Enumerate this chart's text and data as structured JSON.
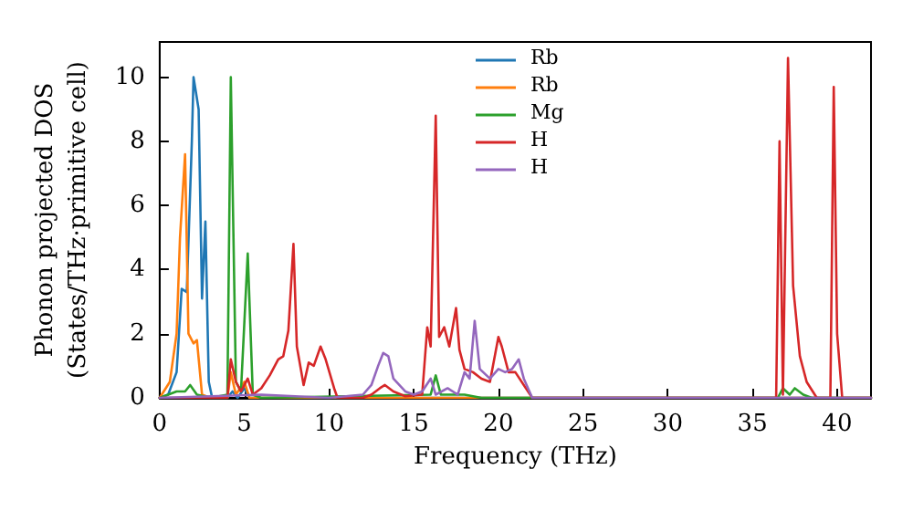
{
  "chart_data": {
    "type": "line",
    "xlabel": "Frequency (THz)",
    "ylabel": "Phonon projected DOS\n(States/THz·primitive cell)",
    "xlim": [
      0,
      42
    ],
    "ylim": [
      0,
      11.1
    ],
    "xticks": [
      0,
      5,
      10,
      15,
      20,
      25,
      30,
      35,
      40
    ],
    "yticks": [
      0,
      2,
      4,
      6,
      8,
      10
    ],
    "grid": false,
    "legend": "top",
    "marker": "none",
    "line_style": "solid",
    "series": [
      {
        "name": "Rb",
        "color": "#1f77b4",
        "x": [
          0,
          0.5,
          1.0,
          1.3,
          1.6,
          1.9,
          2.0,
          2.3,
          2.5,
          2.7,
          2.9,
          3.1,
          4.0,
          4.3,
          4.6,
          5.0,
          5.3,
          6,
          42
        ],
        "values": [
          0,
          0.1,
          0.8,
          3.4,
          3.3,
          8,
          10,
          9,
          3.1,
          5.5,
          0.5,
          0,
          0,
          0.2,
          0,
          0.3,
          0,
          0,
          0
        ]
      },
      {
        "name": "Rb",
        "color": "#ff7f0e",
        "x": [
          0,
          0.6,
          1.0,
          1.2,
          1.5,
          1.7,
          2.0,
          2.2,
          2.5,
          3.0,
          4.0,
          4.2,
          4.5,
          5.0,
          5.3,
          6,
          42
        ],
        "values": [
          0,
          0.5,
          2.0,
          5,
          7.6,
          2.0,
          1.7,
          1.8,
          0.1,
          0,
          0,
          0.8,
          0.1,
          0.5,
          0,
          0,
          0
        ]
      },
      {
        "name": "Mg",
        "color": "#2ca02c",
        "x": [
          0,
          1.0,
          1.5,
          1.8,
          2.2,
          3,
          4.0,
          4.2,
          4.5,
          4.8,
          5.2,
          5.5,
          6,
          16,
          16.3,
          16.6,
          17.5,
          18.0,
          19,
          36.5,
          36.8,
          37.2,
          37.5,
          38,
          38.5,
          42
        ],
        "values": [
          0,
          0.2,
          0.2,
          0.4,
          0.1,
          0,
          0.1,
          10,
          0.5,
          0.2,
          4.5,
          0.1,
          0,
          0.1,
          0.7,
          0.1,
          0.1,
          0.1,
          0,
          0,
          0.3,
          0.1,
          0.3,
          0.1,
          0,
          0
        ]
      },
      {
        "name": "H",
        "color": "#d62728",
        "x": [
          0,
          4.0,
          4.2,
          4.5,
          4.8,
          5.2,
          5.5,
          6.0,
          6.5,
          7.0,
          7.3,
          7.6,
          7.9,
          8.1,
          8.5,
          8.8,
          9.1,
          9.5,
          9.8,
          10.3,
          10.5,
          12,
          12.5,
          13,
          13.3,
          13.8,
          14.5,
          15.5,
          15.8,
          16.0,
          16.3,
          16.5,
          16.8,
          17.1,
          17.5,
          17.7,
          18,
          18.5,
          19,
          19.5,
          20,
          20.2,
          20.6,
          21,
          21.5,
          22,
          36.4,
          36.6,
          36.8,
          37.1,
          37.4,
          37.8,
          38.2,
          38.8,
          39.6,
          39.8,
          40.0,
          40.3,
          42
        ],
        "values": [
          0,
          0,
          1.2,
          0.5,
          0.2,
          0.6,
          0.1,
          0.3,
          0.7,
          1.2,
          1.3,
          2.1,
          4.8,
          1.6,
          0.4,
          1.1,
          1.0,
          1.6,
          1.2,
          0.3,
          0,
          0,
          0.1,
          0.3,
          0.4,
          0.2,
          0.05,
          0.1,
          2.2,
          1.6,
          8.8,
          1.9,
          2.2,
          1.6,
          2.8,
          1.5,
          0.9,
          0.8,
          0.6,
          0.5,
          1.9,
          1.6,
          0.8,
          0.8,
          0.4,
          0,
          0,
          8.0,
          0.1,
          10.6,
          3.5,
          1.3,
          0.5,
          0,
          0,
          9.7,
          2.0,
          0,
          0
        ]
      },
      {
        "name": "H",
        "color": "#9467bd",
        "x": [
          0,
          6,
          10,
          12,
          12.5,
          12.9,
          13.2,
          13.5,
          13.8,
          14.5,
          15,
          15.5,
          16,
          16.3,
          17,
          17.6,
          18,
          18.3,
          18.6,
          18.9,
          19.5,
          20,
          20.4,
          20.8,
          21.2,
          21.5,
          22,
          42
        ],
        "values": [
          0,
          0.1,
          0,
          0.1,
          0.4,
          1.0,
          1.4,
          1.3,
          0.6,
          0.2,
          0.1,
          0.2,
          0.6,
          0.1,
          0.3,
          0.1,
          0.8,
          0.6,
          2.4,
          0.9,
          0.6,
          0.9,
          0.8,
          0.9,
          1.2,
          0.6,
          0,
          0
        ]
      }
    ]
  }
}
